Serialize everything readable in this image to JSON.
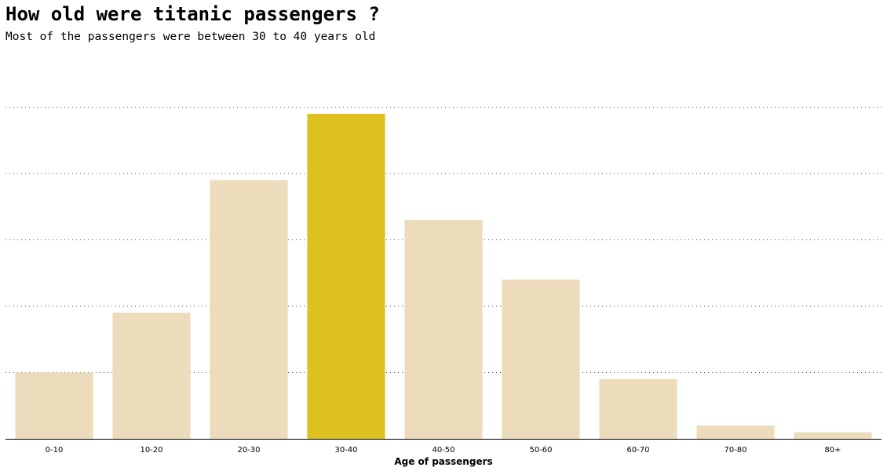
{
  "title": "How old were titanic passengers ?",
  "subtitle": "Most of the passengers were between 30 to 40 years old",
  "chart_data": {
    "type": "bar",
    "categories": [
      "0-10",
      "10-20",
      "20-30",
      "30-40",
      "40-50",
      "50-60",
      "60-70",
      "70-80",
      "80+"
    ],
    "values": [
      10,
      19,
      39,
      49,
      33,
      24,
      9,
      2,
      1
    ],
    "highlight_category": "30-40",
    "xlabel": "Age of passengers",
    "ylabel": "",
    "ylim": [
      0,
      50
    ],
    "gridlines": [
      10,
      20,
      30,
      40,
      50
    ],
    "grid": true,
    "grid_style": "dotted",
    "show_y_ticks": false,
    "colors": {
      "bar": "#ecdcbb",
      "highlight": "#dec01f",
      "grid": "#555555",
      "axis": "#000000"
    }
  }
}
